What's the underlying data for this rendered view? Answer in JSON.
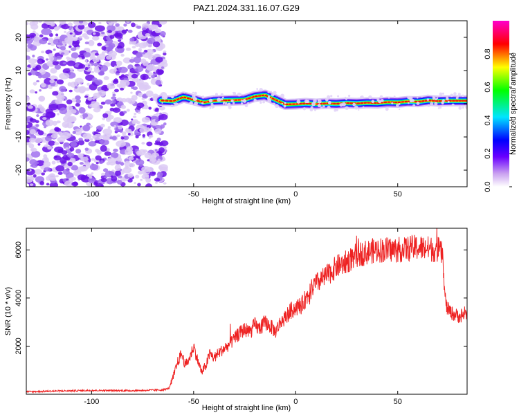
{
  "title": "PAZ1.2024.331.16.07.G29",
  "colors": {
    "snr_line": "#ee2222",
    "scatter": "#7a2cf0",
    "scatter_light": "#d9c8f6"
  },
  "chart_data": [
    {
      "type": "heatmap",
      "xlabel": "Height of straight line (km)",
      "ylabel": "Frequency (Hz)",
      "xlim": [
        -132,
        84
      ],
      "ylim": [
        -25,
        25
      ],
      "x_ticks": [
        -100,
        -50,
        0,
        50
      ],
      "y_ticks": [
        -20,
        -10,
        0,
        10,
        20
      ],
      "grid": false,
      "colorbar": {
        "label": "Normalized spectral amplitude",
        "range": [
          0,
          1
        ],
        "ticks": [
          "0.0",
          "0.2",
          "0.4",
          "0.6",
          "0.8"
        ],
        "colormap": [
          "#ffffff",
          "#a020f0",
          "#0000ff",
          "#00ffff",
          "#00ff00",
          "#ffff00",
          "#ff0000",
          "#ff00ff"
        ]
      },
      "noise_region": {
        "x": [
          -132,
          -64
        ],
        "y": [
          -25,
          25
        ]
      },
      "ridge": {
        "x": [
          -66,
          -60,
          -55,
          -50,
          -45,
          -40,
          -35,
          -30,
          -25,
          -20,
          -15,
          -10,
          -5,
          0,
          5,
          10,
          15,
          20,
          25,
          30,
          35,
          40,
          45,
          50,
          55,
          60,
          65,
          70,
          75,
          80,
          84
        ],
        "y": [
          1.0,
          0.8,
          2.0,
          1.2,
          0.4,
          0.9,
          1.0,
          1.1,
          1.2,
          2.2,
          2.6,
          1.2,
          -0.2,
          -0.1,
          0.1,
          -0.1,
          0.1,
          0.0,
          0.2,
          0.1,
          0.3,
          0.2,
          0.5,
          0.4,
          0.7,
          0.6,
          1.0,
          0.8,
          0.9,
          0.9,
          0.9
        ]
      }
    },
    {
      "type": "line",
      "xlabel": "Height of straight line (km)",
      "ylabel": "SNR (10 * v/v)",
      "xlim": [
        -132,
        84
      ],
      "ylim": [
        0,
        6900
      ],
      "x_ticks": [
        -100,
        -50,
        0,
        50
      ],
      "y_ticks": [
        2000,
        4000,
        6000
      ],
      "grid": false,
      "series": [
        {
          "x": [
            -132,
            -120,
            -100,
            -80,
            -65,
            -62,
            -60,
            -58,
            -56,
            -54,
            -52,
            -50,
            -48,
            -46,
            -44,
            -42,
            -40,
            -38,
            -35,
            -32,
            -30,
            -28,
            -25,
            -22,
            -20,
            -18,
            -15,
            -12,
            -10,
            -8,
            -5,
            -2,
            0,
            3,
            5,
            8,
            10,
            15,
            20,
            25,
            30,
            35,
            40,
            45,
            50,
            55,
            60,
            65,
            70,
            72,
            73,
            74,
            76,
            78,
            80,
            82,
            84
          ],
          "y": [
            100,
            130,
            160,
            150,
            180,
            250,
            700,
            1300,
            1700,
            1200,
            1500,
            2000,
            1400,
            900,
            1200,
            1700,
            1500,
            1700,
            1900,
            2100,
            2300,
            2500,
            2700,
            2600,
            2900,
            2700,
            3000,
            2800,
            2600,
            2900,
            3200,
            3500,
            3600,
            3700,
            4000,
            4400,
            4600,
            4900,
            5300,
            5500,
            5800,
            5900,
            6000,
            6000,
            6000,
            6050,
            6100,
            6050,
            6000,
            5800,
            4200,
            3600,
            3400,
            3300,
            3250,
            3300,
            3300
          ]
        }
      ]
    }
  ]
}
